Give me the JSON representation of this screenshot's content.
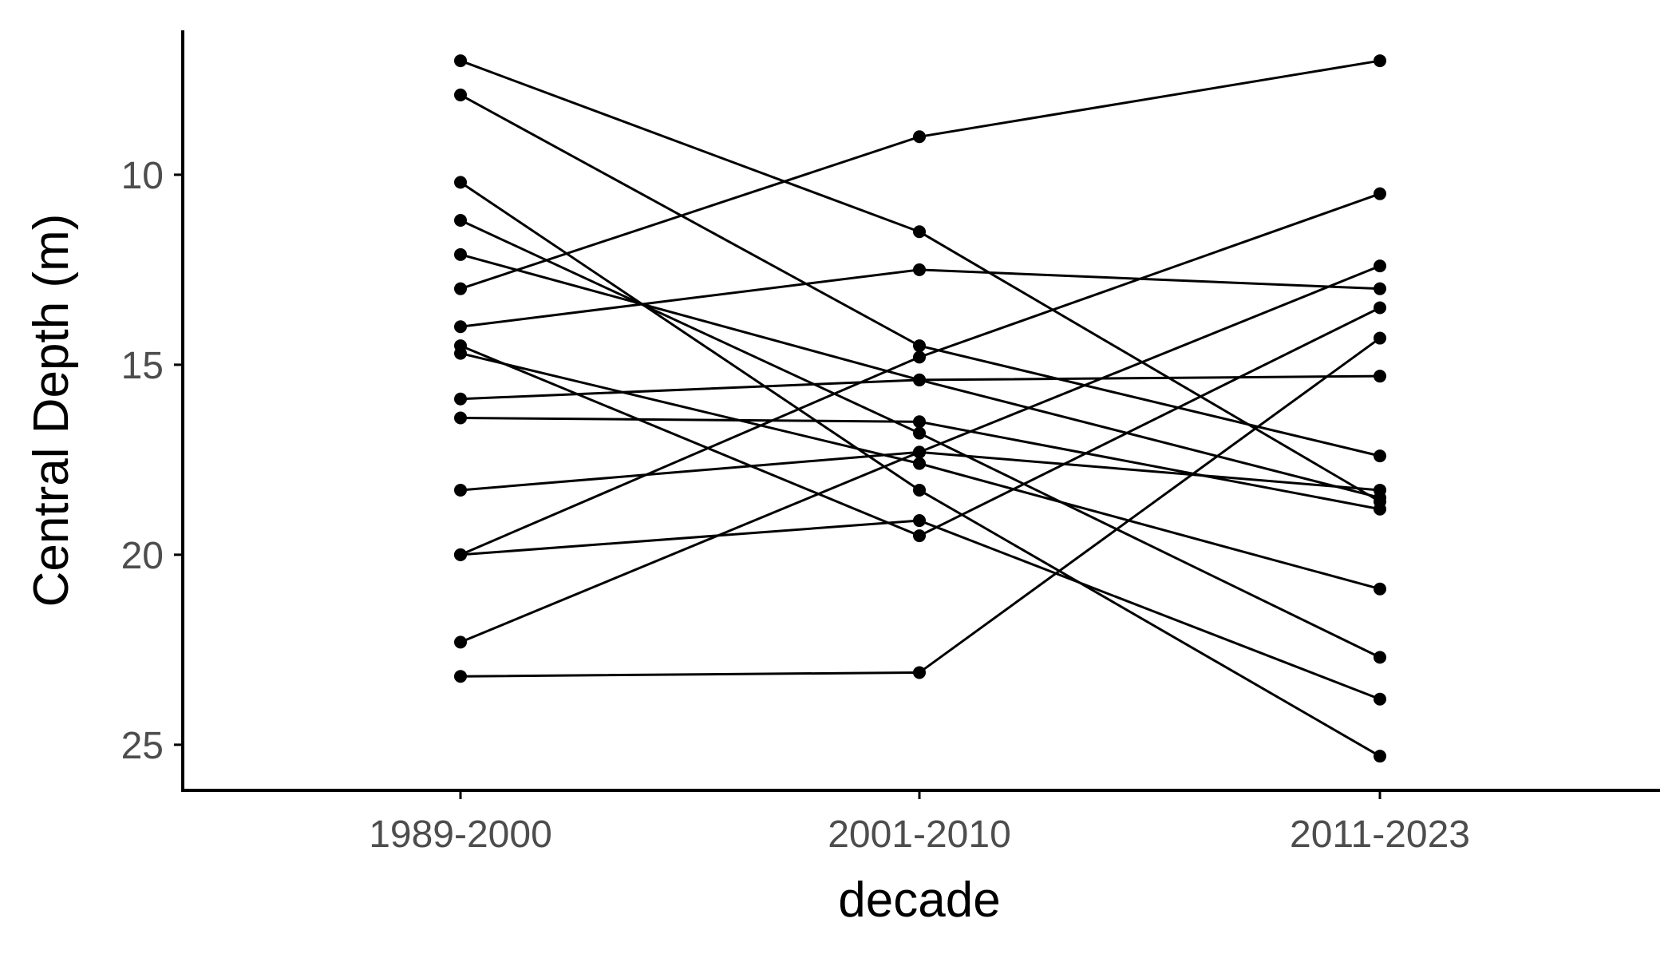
{
  "chart_data": {
    "type": "line",
    "title": "",
    "xlabel": "decade",
    "ylabel": "Central Depth (m)",
    "categories": [
      "1989-2000",
      "2001-2010",
      "2011-2023"
    ],
    "y_reversed": true,
    "ylim": [
      6.2,
      26.2
    ],
    "yticks": [
      10,
      15,
      20,
      25
    ],
    "grid": false,
    "legend": "none",
    "colors": {
      "line": "#000000",
      "point": "#000000",
      "axis": "#000000",
      "tick_label": "#4d4d4d"
    },
    "series": [
      {
        "values": [
          7.0,
          11.5,
          18.6
        ]
      },
      {
        "values": [
          7.9,
          14.5,
          17.4
        ]
      },
      {
        "values": [
          10.2,
          18.3,
          25.3
        ]
      },
      {
        "values": [
          11.2,
          16.8,
          22.7
        ]
      },
      {
        "values": [
          12.1,
          15.4,
          18.5
        ]
      },
      {
        "values": [
          13.0,
          9.0,
          7.0
        ]
      },
      {
        "values": [
          14.0,
          12.5,
          13.0
        ]
      },
      {
        "values": [
          14.7,
          17.6,
          20.9
        ]
      },
      {
        "values": [
          15.9,
          15.4,
          15.3
        ]
      },
      {
        "values": [
          16.4,
          16.5,
          18.8
        ]
      },
      {
        "values": [
          18.3,
          17.3,
          18.3
        ]
      },
      {
        "values": [
          20.0,
          14.8,
          10.5
        ]
      },
      {
        "values": [
          20.0,
          19.1,
          23.8
        ]
      },
      {
        "values": [
          22.3,
          17.3,
          12.4
        ]
      },
      {
        "values": [
          23.2,
          23.1,
          14.3
        ]
      },
      {
        "values": [
          14.5,
          19.5,
          13.5
        ]
      }
    ]
  }
}
